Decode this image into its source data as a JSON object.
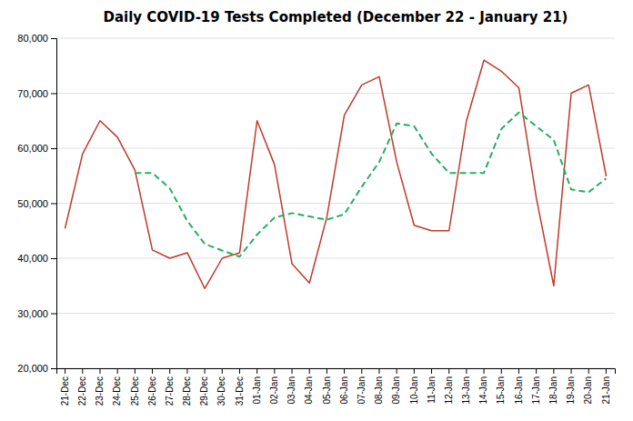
{
  "chart_data": {
    "type": "line",
    "title": "Daily COVID-19 Tests Completed (December 22 - January 21)",
    "categories": [
      "21-Dec",
      "22-Dec",
      "23-Dec",
      "24-Dec",
      "25-Dec",
      "26-Dec",
      "27-Dec",
      "28-Dec",
      "29-Dec",
      "30-Dec",
      "31-Dec",
      "01-Jan",
      "02-Jan",
      "03-Jan",
      "04-Jan",
      "05-Jan",
      "06-Jan",
      "07-Jan",
      "08-Jan",
      "09-Jan",
      "10-Jan",
      "11-Jan",
      "12-Jan",
      "13-Jan",
      "14-Jan",
      "15-Jan",
      "16-Jan",
      "17-Jan",
      "18-Jan",
      "19-Jan",
      "20-Jan",
      "21-Jan"
    ],
    "series": [
      {
        "color": "#c0392b",
        "line_style": "solid",
        "values": [
          45500,
          59000,
          65000,
          62000,
          56000,
          41500,
          40000,
          41000,
          34500,
          40000,
          41000,
          65000,
          57000,
          39000,
          35500,
          47500,
          66000,
          71500,
          73000,
          57500,
          46000,
          45000,
          45000,
          65000,
          76000,
          74000,
          71000,
          51000,
          35000,
          70000,
          71500,
          55000
        ]
      },
      {
        "color": "#27ae60",
        "line_style": "dashed",
        "values": [
          null,
          null,
          null,
          null,
          55500,
          55500,
          52700,
          46800,
          42600,
          41400,
          40300,
          44300,
          47400,
          48200,
          47600,
          47000,
          48000,
          53000,
          57500,
          64500,
          64000,
          59000,
          55500,
          55500,
          55500,
          63500,
          66500,
          64000,
          61500,
          52500,
          52000,
          54500
        ]
      }
    ],
    "ylim": [
      20000,
      80000
    ],
    "yticks": [
      {
        "value": 20000,
        "label": "20,000"
      },
      {
        "value": 30000,
        "label": "30,000"
      },
      {
        "value": 40000,
        "label": "40,000"
      },
      {
        "value": 50000,
        "label": "50,000"
      },
      {
        "value": 60000,
        "label": "60,000"
      },
      {
        "value": 70000,
        "label": "70,000"
      },
      {
        "value": 80000,
        "label": "80,000"
      }
    ],
    "grid": true
  }
}
